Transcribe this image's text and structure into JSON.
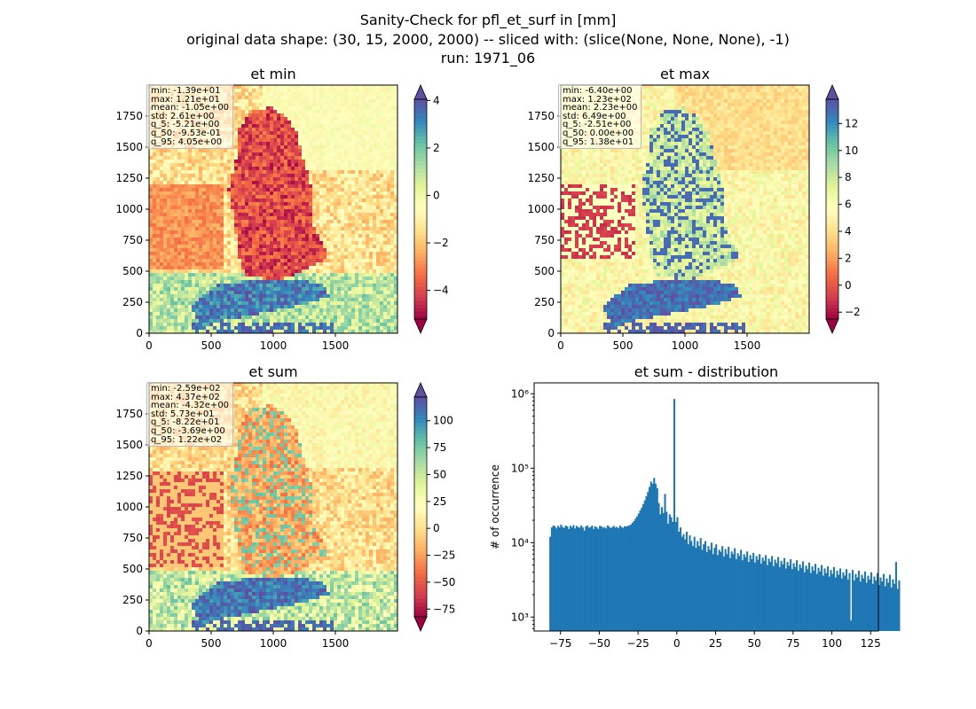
{
  "figure": {
    "title_lines": [
      "Sanity-Check for pfl_et_surf in [mm]",
      "original data shape: (30, 15, 2000, 2000) -- sliced with: (slice(None, None, None), -1)",
      "run: 1971_06"
    ]
  },
  "chart_data": [
    {
      "type": "heatmap",
      "title": "et min",
      "xlim": [
        0,
        2000
      ],
      "ylim": [
        0,
        2000
      ],
      "x_ticks": [
        0,
        500,
        1000,
        1500
      ],
      "y_ticks": [
        0,
        250,
        500,
        750,
        1000,
        1250,
        1500,
        1750
      ],
      "colormap": "Spectral",
      "colorbar": {
        "min": -5.21,
        "max": 4.05,
        "ticks": [
          -4,
          -2,
          0,
          2,
          4
        ],
        "extend": "both"
      },
      "stats": [
        "min: -1.39e+01",
        "max: 1.21e+01",
        "mean: -1.05e+00",
        "std: 2.61e+00",
        "q_5: -5.21e+00",
        "q_50: -9.53e-01",
        "q_95: 4.05e+00"
      ]
    },
    {
      "type": "heatmap",
      "title": "et max",
      "xlim": [
        0,
        2000
      ],
      "ylim": [
        0,
        2000
      ],
      "x_ticks": [
        0,
        500,
        1000,
        1500
      ],
      "y_ticks": [
        0,
        250,
        500,
        750,
        1000,
        1250,
        1500,
        1750
      ],
      "colormap": "Spectral",
      "colorbar": {
        "min": -2.51,
        "max": 13.8,
        "ticks": [
          -2,
          0,
          2,
          4,
          6,
          8,
          10,
          12
        ],
        "extend": "both"
      },
      "stats": [
        "min: -6.40e+00",
        "max: 1.23e+02",
        "mean: 2.23e+00",
        "std: 6.49e+00",
        "q_5: -2.51e+00",
        "q_50: 0.00e+00",
        "q_95: 1.38e+01"
      ]
    },
    {
      "type": "heatmap",
      "title": "et sum",
      "xlim": [
        0,
        2000
      ],
      "ylim": [
        0,
        2000
      ],
      "x_ticks": [
        0,
        500,
        1000,
        1500
      ],
      "y_ticks": [
        0,
        250,
        500,
        750,
        1000,
        1250,
        1500,
        1750
      ],
      "colormap": "Spectral",
      "colorbar": {
        "min": -82.2,
        "max": 122,
        "ticks": [
          -75,
          -50,
          -25,
          0,
          25,
          50,
          75,
          100
        ],
        "extend": "both"
      },
      "stats": [
        "min: -2.59e+02",
        "max: 4.37e+02",
        "mean: -4.32e+00",
        "std: 5.73e+01",
        "q_5: -8.22e+01",
        "q_50: -3.69e+00",
        "q_95: 1.22e+02"
      ]
    },
    {
      "type": "bar",
      "title": "et sum - distribution",
      "ylabel": "# of occurrence",
      "yscale": "log",
      "xlim": [
        -92,
        130
      ],
      "ylim": [
        650,
        1400000
      ],
      "x_ticks": [
        -75,
        -50,
        -25,
        0,
        25,
        50,
        75,
        100,
        125
      ],
      "y_ticks": [
        {
          "value": 1000,
          "label": "10³"
        },
        {
          "value": 10000,
          "label": "10⁴"
        },
        {
          "value": 100000,
          "label": "10⁵"
        },
        {
          "value": 1000000,
          "label": "10⁶"
        }
      ],
      "color": "#1f77b4",
      "bin_start": -82.2,
      "bin_width": 1.0,
      "counts": [
        12000,
        16000,
        17000,
        16500,
        15500,
        16800,
        16000,
        17500,
        16200,
        15800,
        17000,
        16500,
        15200,
        16800,
        16000,
        17200,
        15500,
        16800,
        16200,
        15800,
        17000,
        16000,
        14500,
        16500,
        17000,
        15800,
        16200,
        16900,
        15300,
        16600,
        16000,
        15200,
        16800,
        16500,
        15800,
        16200,
        15500,
        17000,
        16400,
        15700,
        16100,
        16800,
        15900,
        16300,
        15600,
        16900,
        16200,
        15800,
        16600,
        16400,
        16800,
        17000,
        17500,
        18500,
        19500,
        21000,
        22500,
        24500,
        27000,
        29500,
        33000,
        37000,
        42000,
        48000,
        56000,
        66000,
        62000,
        74000,
        62000,
        54000,
        34000,
        24000,
        30000,
        25000,
        45000,
        26000,
        18000,
        24000,
        22000,
        19000,
        850000,
        19000,
        22000,
        14000,
        16000,
        12000,
        13000,
        11000,
        14000,
        9500,
        12500,
        10500,
        9000,
        12000,
        8500,
        10500,
        9000,
        11500,
        8000,
        9500,
        10500,
        7500,
        9000,
        8000,
        10000,
        7000,
        8500,
        9500,
        6800,
        8000,
        7500,
        9000,
        6500,
        8200,
        7000,
        8800,
        6200,
        7600,
        7000,
        8400,
        6000,
        7200,
        6600,
        8000,
        5800,
        7000,
        6400,
        7600,
        5500,
        6800,
        6000,
        7300,
        5400,
        6600,
        5900,
        7000,
        5200,
        6300,
        5700,
        6800,
        5000,
        6100,
        5500,
        6600,
        4800,
        5900,
        5300,
        6400,
        4700,
        5700,
        5100,
        6200,
        4500,
        5500,
        4900,
        6000,
        4400,
        5300,
        4700,
        5800,
        4200,
        5100,
        4600,
        5600,
        4000,
        4900,
        4400,
        5400,
        3900,
        4800,
        4200,
        5200,
        3800,
        4600,
        4100,
        5000,
        3600,
        4500,
        3900,
        4800,
        3500,
        4300,
        3800,
        4700,
        3400,
        4200,
        3700,
        4500,
        3300,
        4000,
        3600,
        4400,
        3200,
        3900,
        900,
        4300,
        3100,
        3800,
        3400,
        4200,
        3000,
        3700,
        3300,
        4100,
        2900,
        3600,
        3200,
        4000,
        2800,
        3500,
        3100,
        3900,
        2700,
        3400,
        3000,
        3800,
        2600,
        3300,
        2900,
        3700,
        2500,
        3200,
        2800,
        5500,
        2400,
        3100
      ]
    }
  ]
}
